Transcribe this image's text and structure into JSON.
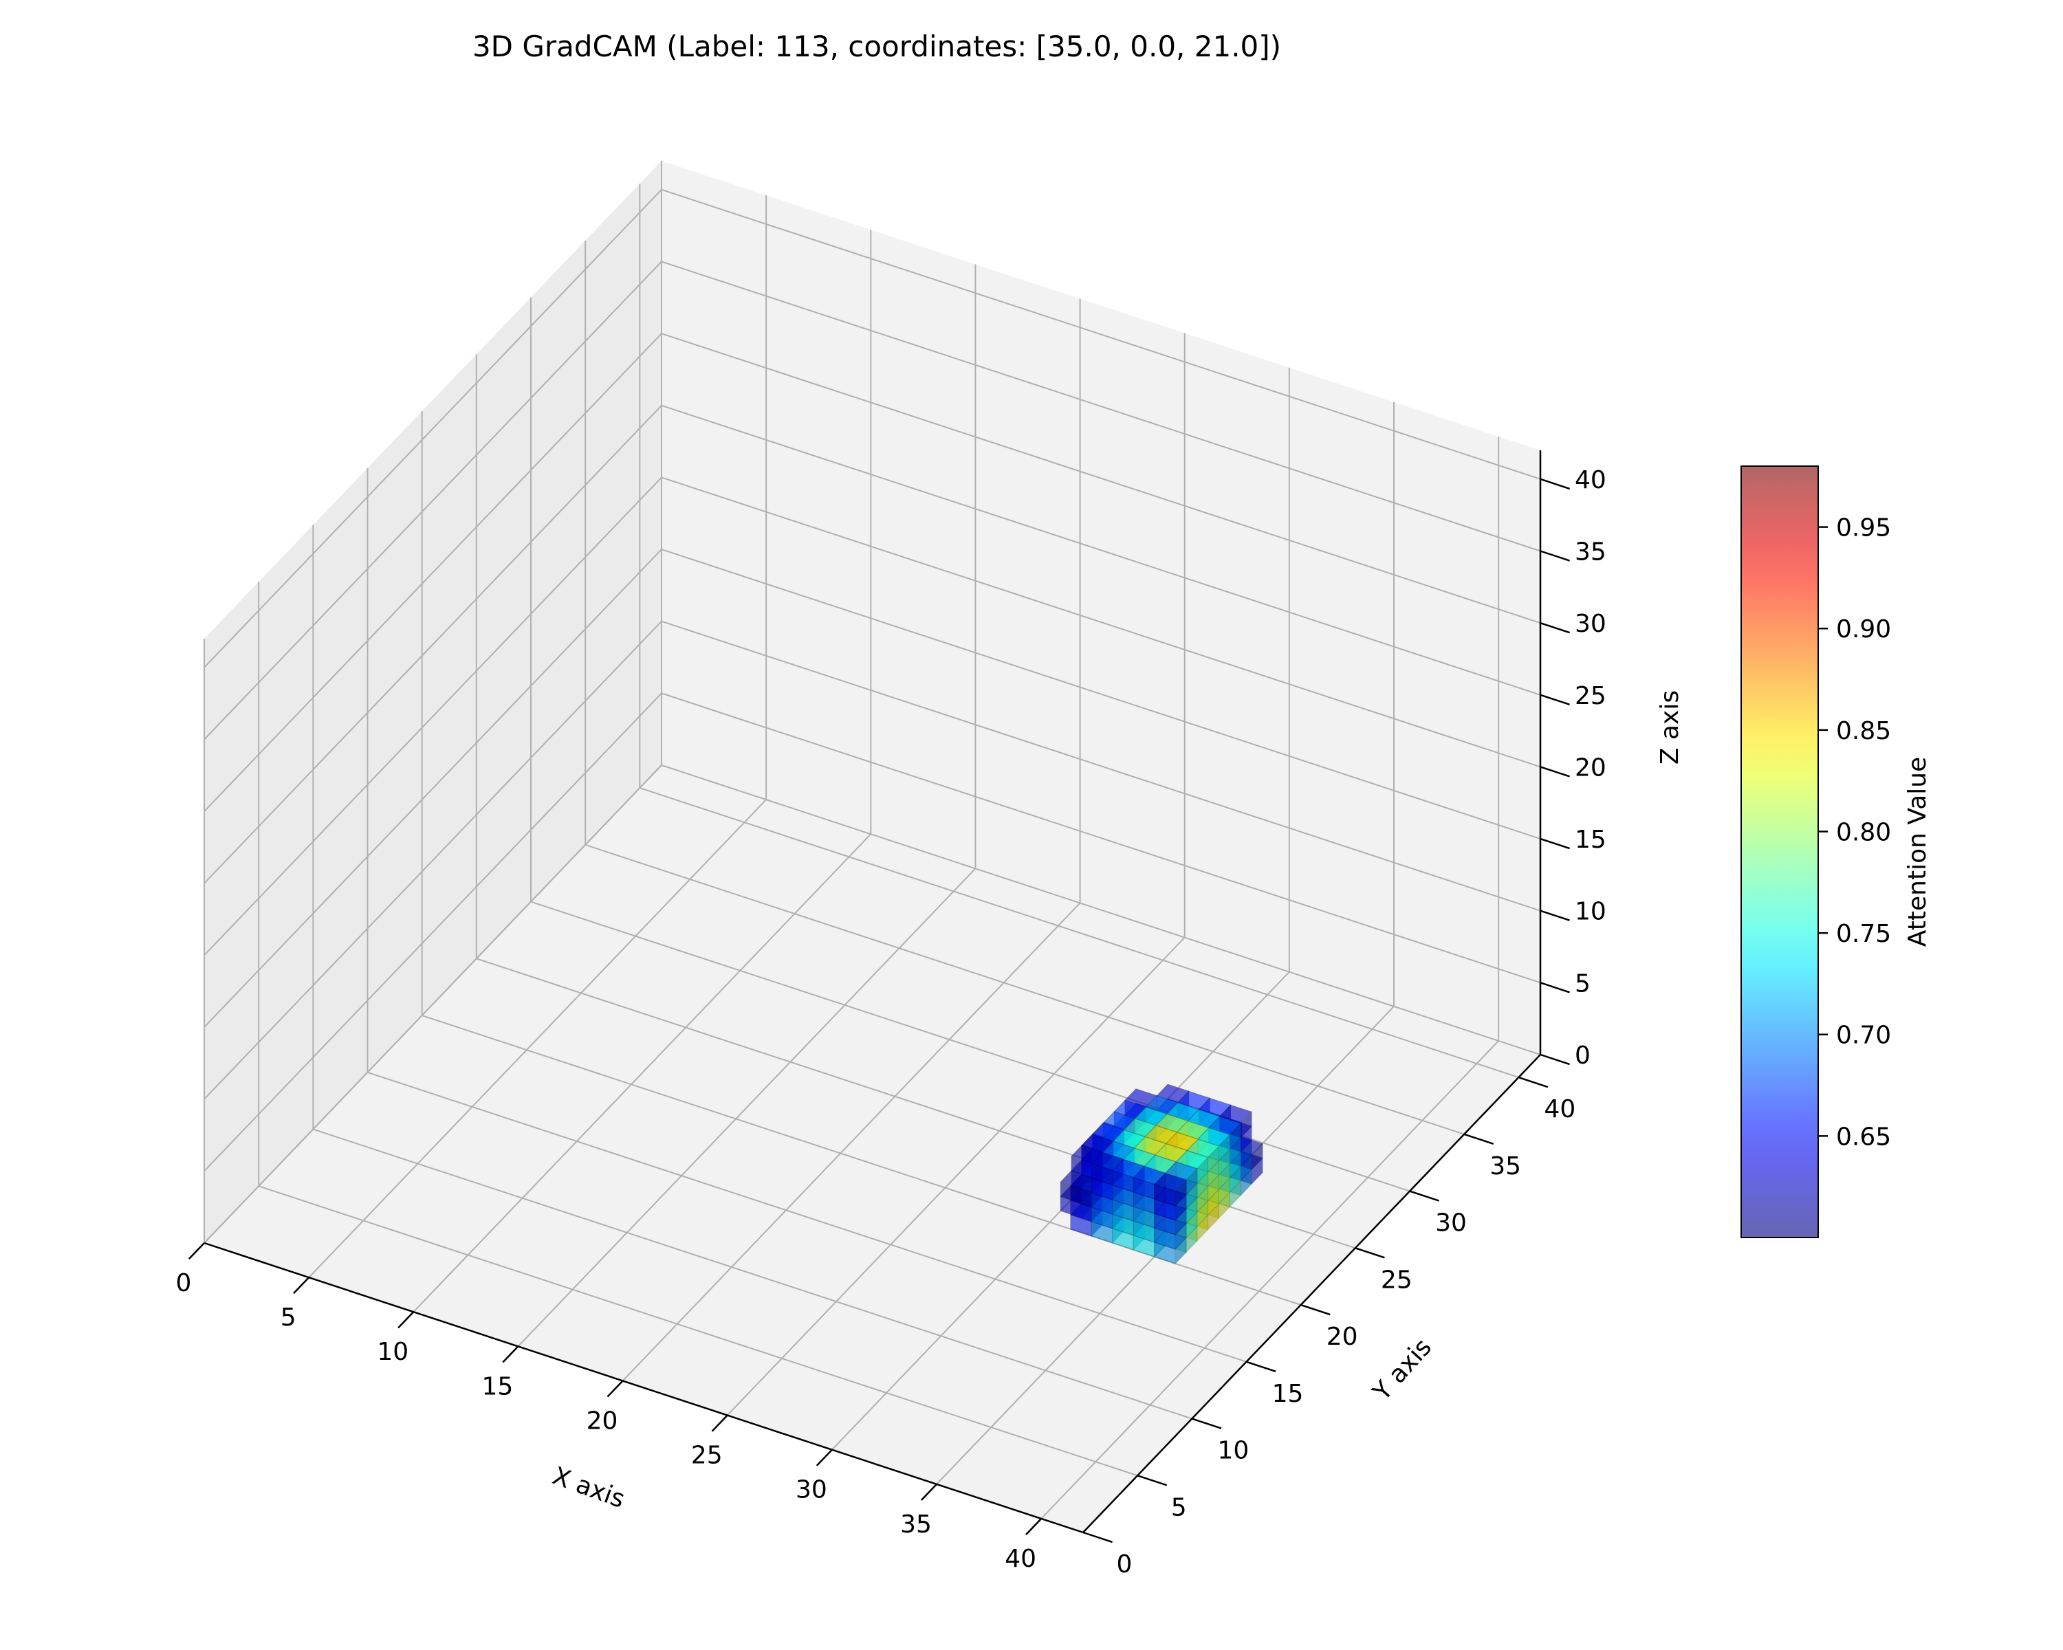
{
  "chart_data": {
    "type": "voxel-3d",
    "title": "3D GradCAM (Label: 113, coordinates: [35.0, 0.0, 21.0])",
    "xlabel": "X axis",
    "ylabel": "Y axis",
    "zlabel": "Z axis",
    "xlim": [
      0,
      42
    ],
    "ylim": [
      0,
      42
    ],
    "zlim": [
      0,
      42
    ],
    "x_ticks": [
      0,
      5,
      10,
      15,
      20,
      25,
      30,
      35,
      40
    ],
    "y_ticks": [
      0,
      5,
      10,
      15,
      20,
      25,
      30,
      35,
      40
    ],
    "z_ticks": [
      0,
      5,
      10,
      15,
      20,
      25,
      30,
      35,
      40
    ],
    "grid": true,
    "colormap": "jet",
    "alpha": 0.6,
    "colorbar": {
      "label": "Attention Value",
      "range": [
        0.6,
        0.98
      ],
      "ticks": [
        "0.65",
        "0.70",
        "0.75",
        "0.80",
        "0.85",
        "0.90",
        "0.95"
      ],
      "placement": "right"
    },
    "voxel_region": {
      "x_range": [
        29,
        36
      ],
      "y_range": [
        20,
        28
      ],
      "z_range": [
        0,
        5
      ],
      "peak_value": 0.98,
      "min_value": 0.6
    }
  },
  "colors": {
    "pane": "#f2f2f2",
    "pane_side": "#ebebeb",
    "grid": "#b0b0b0",
    "axis": "#000000"
  }
}
